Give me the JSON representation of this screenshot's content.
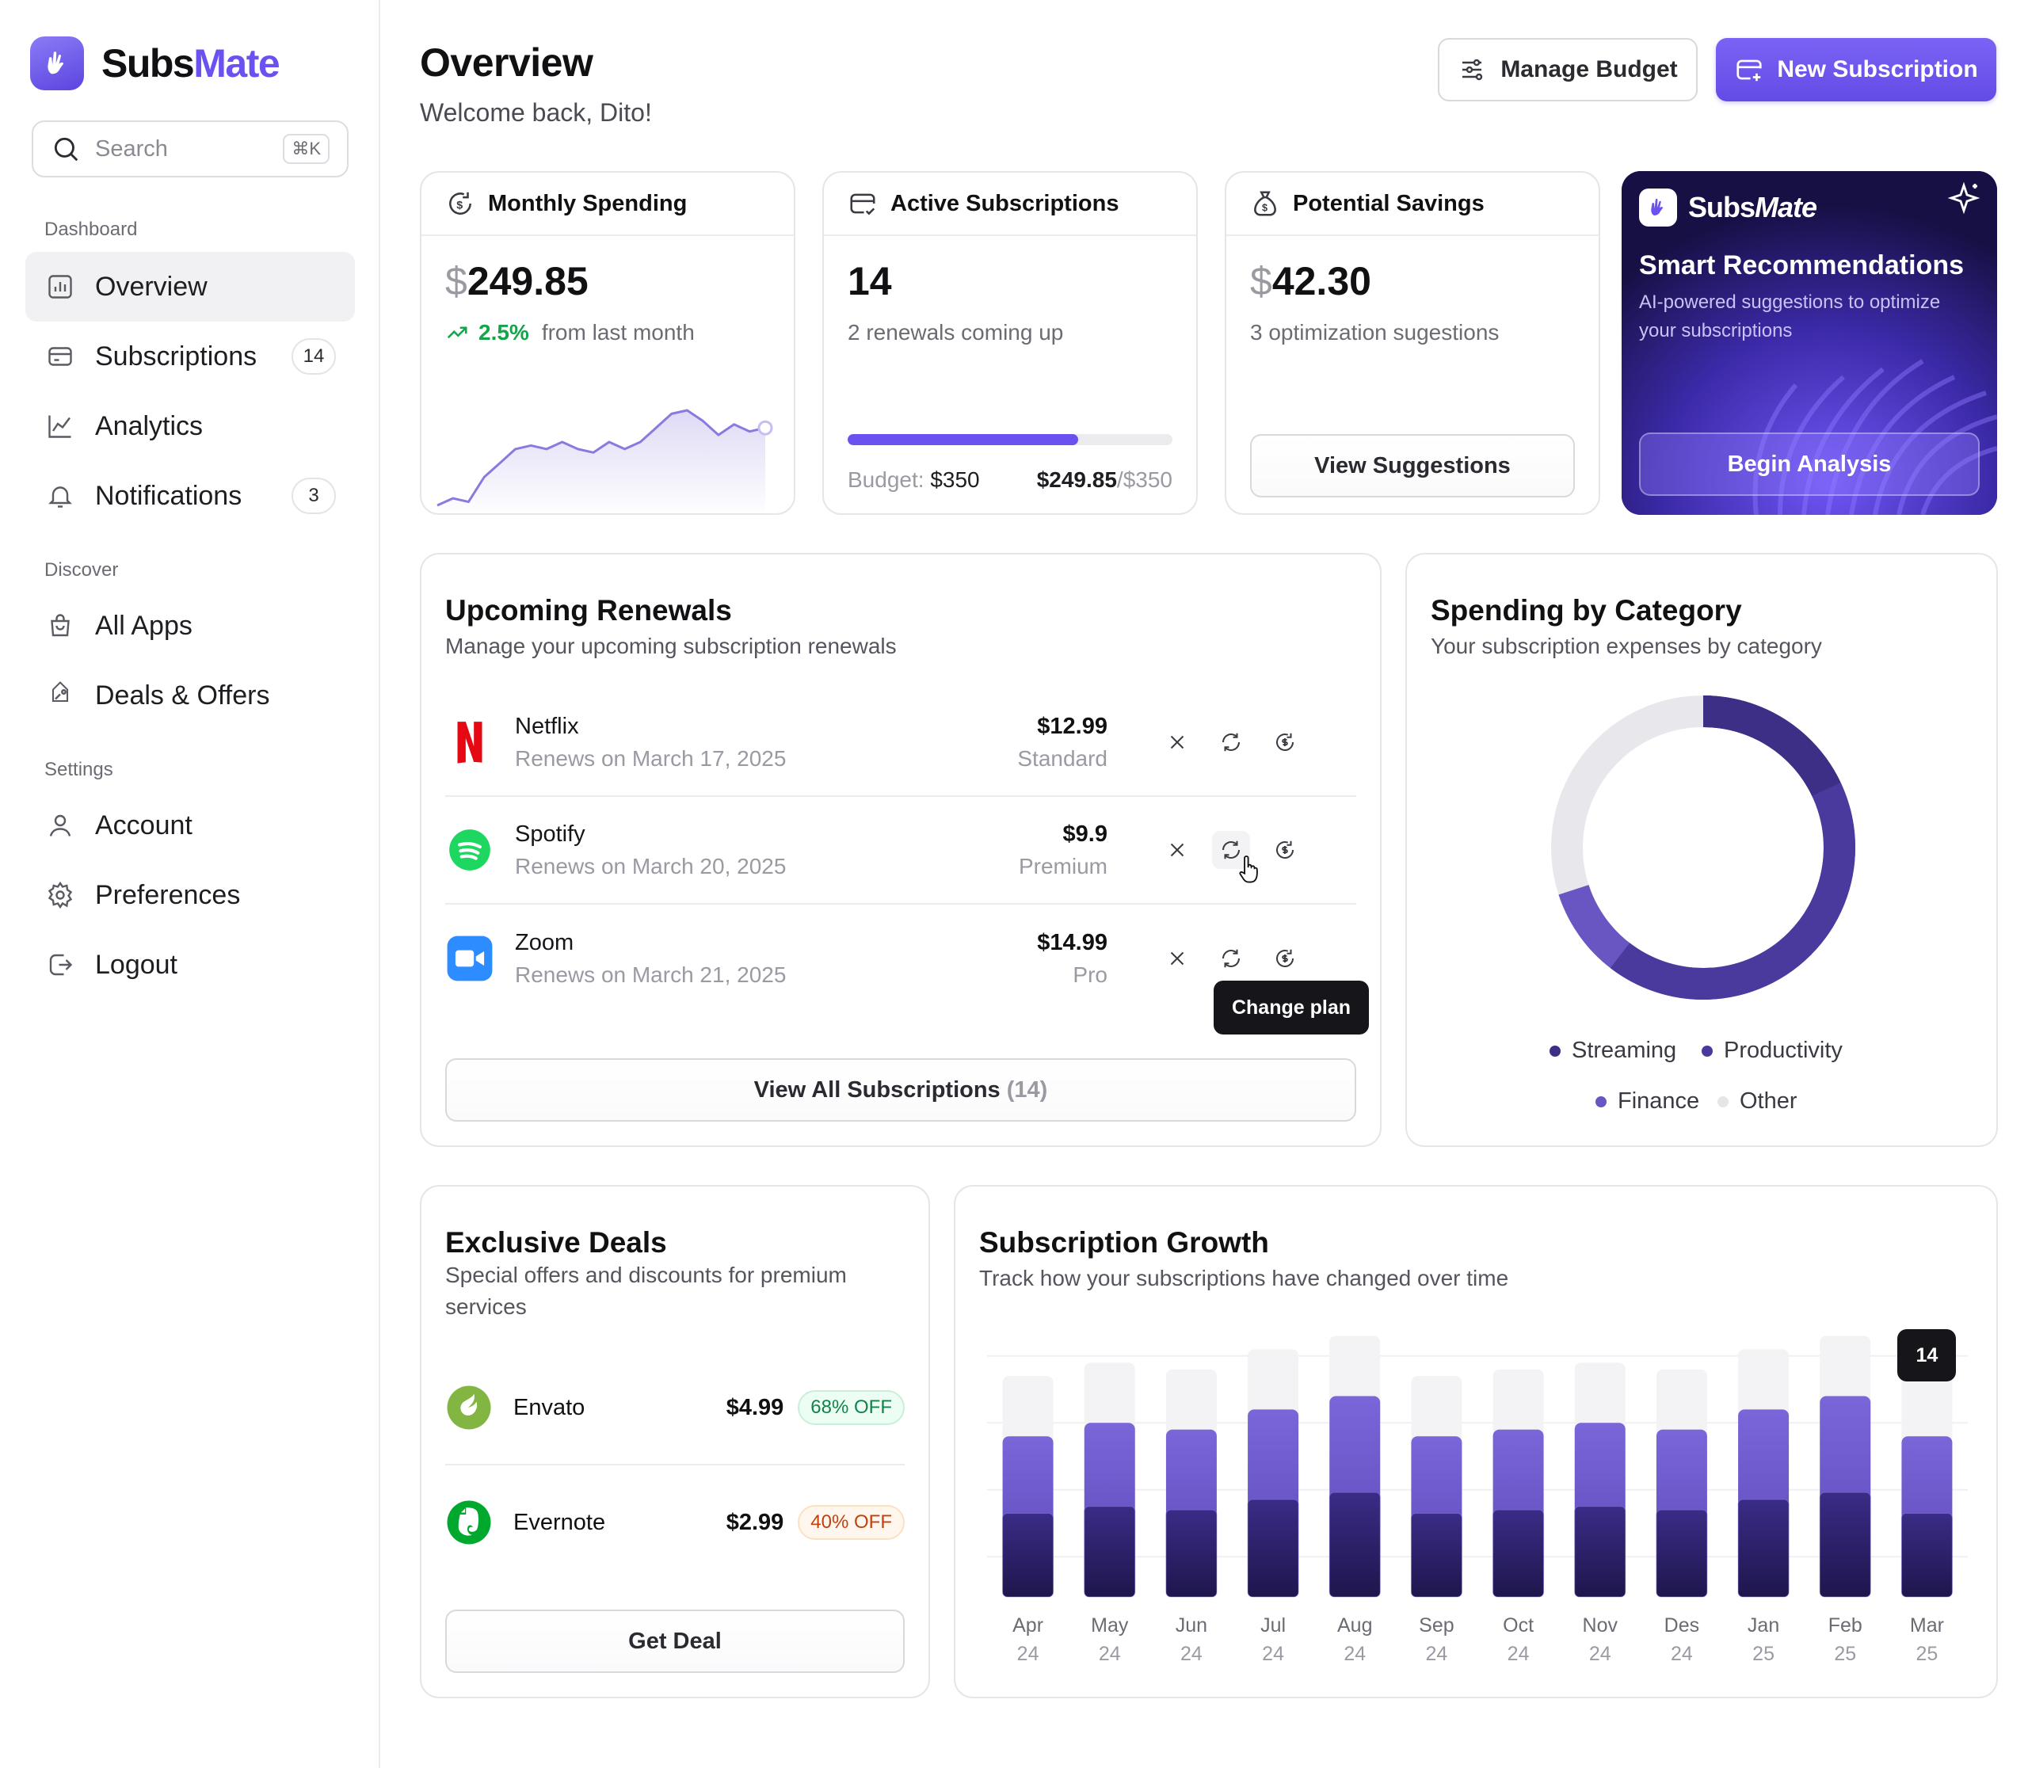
{
  "app": {
    "name_part1": "Subs",
    "name_part2": "Mate"
  },
  "search": {
    "placeholder": "Search",
    "shortcut": "⌘K"
  },
  "sidebar": {
    "sections": [
      "Dashboard",
      "Discover",
      "Settings"
    ],
    "items": [
      {
        "label": "Overview",
        "icon": "chart-icon",
        "active": true
      },
      {
        "label": "Subscriptions",
        "icon": "card-icon",
        "badge": "14"
      },
      {
        "label": "Analytics",
        "icon": "analytics-icon"
      },
      {
        "label": "Notifications",
        "icon": "bell-icon",
        "badge": "3"
      },
      {
        "label": "All Apps",
        "icon": "bag-icon"
      },
      {
        "label": "Deals & Offers",
        "icon": "tag-icon"
      },
      {
        "label": "Account",
        "icon": "user-icon"
      },
      {
        "label": "Preferences",
        "icon": "gear-icon"
      },
      {
        "label": "Logout",
        "icon": "logout-icon"
      }
    ]
  },
  "header": {
    "title": "Overview",
    "subtitle": "Welcome back, Dito!",
    "manage_budget": "Manage Budget",
    "new_subscription": "New Subscription"
  },
  "stats": {
    "monthly": {
      "title": "Monthly Spending",
      "currency": "$",
      "value": "249.85",
      "change": "2.5%",
      "change_note": "from last month"
    },
    "active": {
      "title": "Active Subscriptions",
      "value": "14",
      "note": "2 renewals coming up",
      "budget_label": "Budget:",
      "budget_value": "$350",
      "spent": "$249.85",
      "spent_of": "/$350",
      "progress": 0.71
    },
    "savings": {
      "title": "Potential Savings",
      "currency": "$",
      "value": "42.30",
      "note": "3 optimization sugestions",
      "button": "View Suggestions"
    }
  },
  "promo": {
    "brand1": "Subs",
    "brand2": "Mate",
    "title": "Smart Recommendations",
    "desc": "AI-powered suggestions to optimize your subscriptions",
    "button": "Begin Analysis"
  },
  "renewals": {
    "title": "Upcoming Renewals",
    "subtitle": "Manage your upcoming subscription renewals",
    "items": [
      {
        "name": "Netflix",
        "date": "Renews on March 17, 2025",
        "price": "$12.99",
        "plan": "Standard",
        "color": "#e50914"
      },
      {
        "name": "Spotify",
        "date": "Renews on March 20, 2025",
        "price": "$9.9",
        "plan": "Premium",
        "color": "#1ed760"
      },
      {
        "name": "Zoom",
        "date": "Renews on March 21, 2025",
        "price": "$14.99",
        "plan": "Pro",
        "color": "#2d8cff"
      }
    ],
    "tooltip": "Change plan",
    "view_all": "View All Subscriptions",
    "view_all_count": "(14)"
  },
  "category": {
    "title": "Spending by Category",
    "subtitle": "Your subscription expenses by category",
    "legend": [
      {
        "label": "Streaming",
        "color": "#3d2f86"
      },
      {
        "label": "Productivity",
        "color": "#4b3a9e"
      },
      {
        "label": "Finance",
        "color": "#6a56c2"
      },
      {
        "label": "Other",
        "color": "#e6e6ea"
      }
    ]
  },
  "deals": {
    "title": "Exclusive Deals",
    "subtitle": "Special offers and discounts for premium services",
    "items": [
      {
        "name": "Envato",
        "price": "$4.99",
        "off": "68% OFF",
        "color": "#82b541"
      },
      {
        "name": "Evernote",
        "price": "$2.99",
        "off": "40% OFF",
        "color": "#00a82d"
      }
    ],
    "button": "Get Deal"
  },
  "growth": {
    "title": "Subscription Growth",
    "subtitle": "Track how your subscriptions have changed over time",
    "tooltip": "14"
  },
  "chart_data": {
    "type": "bar",
    "categories": [
      "Apr 24",
      "May 24",
      "Jun 24",
      "Jul 24",
      "Aug 24",
      "Sep 24",
      "Oct 24",
      "Nov 24",
      "Des 24",
      "Jan 25",
      "Feb 25",
      "Mar 25"
    ],
    "month_labels": [
      "Apr",
      "May",
      "Jun",
      "Jul",
      "Aug",
      "Sep",
      "Oct",
      "Nov",
      "Des",
      "Jan",
      "Feb",
      "Mar"
    ],
    "year_labels": [
      "24",
      "24",
      "24",
      "24",
      "24",
      "24",
      "24",
      "24",
      "24",
      "25",
      "25",
      "25"
    ],
    "values": [
      12,
      13,
      12.5,
      14,
      15,
      12,
      12.5,
      13,
      12.5,
      14,
      15,
      12
    ],
    "ylim": [
      0,
      20
    ],
    "grid": true,
    "highlighted_value": 14,
    "colors": {
      "top": "#7c6bd6",
      "bottom": "#231a5a",
      "track": "#f3f3f5"
    }
  },
  "monthly_sparkline": [
    4,
    5,
    4.5,
    8,
    10,
    12,
    12.5,
    12,
    13,
    12,
    11.5,
    13,
    12,
    13,
    15,
    17,
    17.5,
    16,
    14,
    15.5,
    14.5,
    15
  ]
}
